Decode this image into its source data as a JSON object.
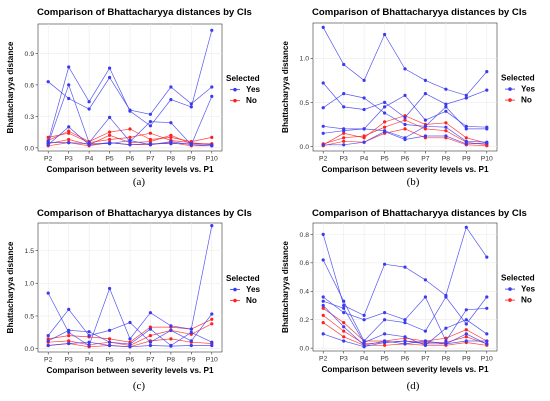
{
  "colors": {
    "yes": "#3a3af0",
    "no": "#ff2020"
  },
  "chart_data": [
    {
      "type": "line",
      "panel": "a",
      "caption": "(a)",
      "title": "Comparison of Bhattacharyya distances by CIs",
      "xlabel": "Comparison between severity levels vs. P1",
      "ylabel": "Bhattacharyya distance",
      "categories": [
        "P2",
        "P3",
        "P4",
        "P5",
        "P6",
        "P7",
        "P8",
        "P9",
        "P10"
      ],
      "ylim": [
        -0.03,
        1.18
      ],
      "yticks": [
        0.0,
        0.3,
        0.6,
        0.9
      ],
      "yticklabels": [
        "0.0",
        "0.3",
        "0.6",
        "0.9"
      ],
      "legend": {
        "title": "Selected",
        "entries": [
          "Yes",
          "No"
        ],
        "position": "right"
      },
      "series": [
        {
          "group": "Yes",
          "values": [
            0.63,
            0.47,
            0.37,
            0.67,
            0.36,
            0.32,
            0.58,
            0.42,
            0.58
          ]
        },
        {
          "group": "Yes",
          "values": [
            0.06,
            0.77,
            0.44,
            0.76,
            0.35,
            0.21,
            0.46,
            0.39,
            1.12
          ]
        },
        {
          "group": "Yes",
          "values": [
            0.04,
            0.6,
            0.05,
            0.29,
            0.06,
            0.25,
            0.24,
            0.03,
            0.49
          ]
        },
        {
          "group": "Yes",
          "values": [
            0.03,
            0.2,
            0.03,
            0.05,
            0.03,
            0.04,
            0.04,
            0.04,
            0.03
          ]
        },
        {
          "group": "Yes",
          "values": [
            0.05,
            0.05,
            0.04,
            0.04,
            0.07,
            0.03,
            0.06,
            0.03,
            0.02
          ]
        },
        {
          "group": "No",
          "values": [
            0.07,
            0.16,
            0.06,
            0.15,
            0.18,
            0.08,
            0.1,
            0.06,
            0.1
          ]
        },
        {
          "group": "No",
          "values": [
            0.1,
            0.14,
            0.05,
            0.08,
            0.1,
            0.14,
            0.07,
            0.05,
            0.03
          ]
        },
        {
          "group": "No",
          "values": [
            0.04,
            0.08,
            0.03,
            0.12,
            0.05,
            0.06,
            0.12,
            0.04,
            0.04
          ]
        },
        {
          "group": "No",
          "values": [
            0.02,
            0.05,
            0.02,
            0.05,
            0.03,
            0.03,
            0.05,
            0.02,
            0.02
          ]
        }
      ]
    },
    {
      "type": "line",
      "panel": "b",
      "caption": "(b)",
      "title": "Comparison of Bhattacharyya distances by CIs",
      "xlabel": "Comparison between severity levels vs. P1",
      "ylabel": "Bhattacharyya distance",
      "categories": [
        "P2",
        "P3",
        "P4",
        "P5",
        "P6",
        "P7",
        "P8",
        "P9",
        "P10"
      ],
      "ylim": [
        -0.05,
        1.4
      ],
      "yticks": [
        0.0,
        0.5,
        1.0
      ],
      "yticklabels": [
        "0.0",
        "0.5",
        "1.0"
      ],
      "legend": {
        "title": "Selected",
        "entries": [
          "Yes",
          "No"
        ],
        "position": "right"
      },
      "series": [
        {
          "group": "Yes",
          "values": [
            1.35,
            0.93,
            0.75,
            1.27,
            0.88,
            0.75,
            0.65,
            0.58,
            0.85
          ]
        },
        {
          "group": "Yes",
          "values": [
            0.72,
            0.45,
            0.42,
            0.5,
            0.33,
            0.6,
            0.48,
            0.55,
            0.64
          ]
        },
        {
          "group": "Yes",
          "values": [
            0.44,
            0.6,
            0.55,
            0.38,
            0.25,
            0.23,
            0.45,
            0.2,
            0.2
          ]
        },
        {
          "group": "Yes",
          "values": [
            0.23,
            0.2,
            0.2,
            0.45,
            0.58,
            0.3,
            0.4,
            0.23,
            0.22
          ]
        },
        {
          "group": "Yes",
          "values": [
            0.15,
            0.18,
            0.2,
            0.18,
            0.1,
            0.23,
            0.22,
            0.06,
            0.05
          ]
        },
        {
          "group": "Yes",
          "values": [
            0.02,
            0.02,
            0.05,
            0.17,
            0.08,
            0.12,
            0.12,
            0.03,
            0.04
          ]
        },
        {
          "group": "No",
          "values": [
            0.02,
            0.15,
            0.1,
            0.28,
            0.35,
            0.25,
            0.27,
            0.1,
            0.04
          ]
        },
        {
          "group": "No",
          "values": [
            0.03,
            0.1,
            0.12,
            0.22,
            0.3,
            0.2,
            0.18,
            0.05,
            0.02
          ]
        },
        {
          "group": "No",
          "values": [
            0.01,
            0.06,
            0.05,
            0.15,
            0.2,
            0.1,
            0.1,
            0.02,
            0.01
          ]
        }
      ]
    },
    {
      "type": "line",
      "panel": "c",
      "caption": "(c)",
      "title": "Comparison of Bhattacharyya distances by CIs",
      "xlabel": "Comparison between severity levels vs. P1",
      "ylabel": "Bhattacharyya distance",
      "categories": [
        "P2",
        "P3",
        "P4",
        "P5",
        "P6",
        "P7",
        "P8",
        "P9",
        "P10"
      ],
      "ylim": [
        -0.05,
        1.92
      ],
      "yticks": [
        0.0,
        0.5,
        1.0,
        1.5
      ],
      "yticklabels": [
        "0.0",
        "0.5",
        "1.0",
        "1.5"
      ],
      "legend": {
        "title": "Selected",
        "entries": [
          "Yes",
          "No"
        ],
        "position": "right"
      },
      "series": [
        {
          "group": "Yes",
          "values": [
            0.85,
            0.25,
            0.05,
            0.92,
            0.15,
            0.55,
            0.35,
            0.3,
            1.88
          ]
        },
        {
          "group": "Yes",
          "values": [
            0.2,
            0.6,
            0.2,
            0.28,
            0.4,
            0.1,
            0.28,
            0.12,
            0.53
          ]
        },
        {
          "group": "Yes",
          "values": [
            0.12,
            0.28,
            0.26,
            0.1,
            0.07,
            0.3,
            0.05,
            0.25,
            0.1
          ]
        },
        {
          "group": "Yes",
          "values": [
            0.05,
            0.08,
            0.1,
            0.05,
            0.03,
            0.05,
            0.04,
            0.05,
            0.05
          ]
        },
        {
          "group": "No",
          "values": [
            0.15,
            0.2,
            0.18,
            0.15,
            0.1,
            0.33,
            0.33,
            0.3,
            0.45
          ]
        },
        {
          "group": "No",
          "values": [
            0.1,
            0.12,
            0.06,
            0.1,
            0.05,
            0.2,
            0.28,
            0.22,
            0.38
          ]
        },
        {
          "group": "No",
          "values": [
            0.05,
            0.08,
            0.03,
            0.05,
            0.03,
            0.12,
            0.15,
            0.1,
            0.08
          ]
        }
      ]
    },
    {
      "type": "line",
      "panel": "d",
      "caption": "(d)",
      "title": "Comparison of Bhattacharyya distances by CIs",
      "xlabel": "Comparison between severity levels vs. P1",
      "ylabel": "Bhattacharyya distance",
      "categories": [
        "P2",
        "P3",
        "P4",
        "P5",
        "P6",
        "P7",
        "P8",
        "P9",
        "P10"
      ],
      "ylim": [
        -0.02,
        0.88
      ],
      "yticks": [
        0.0,
        0.2,
        0.4,
        0.6,
        0.8
      ],
      "yticklabels": [
        "0.0",
        "0.2",
        "0.4",
        "0.6",
        "0.8"
      ],
      "legend": {
        "title": "Selected",
        "entries": [
          "Yes",
          "No"
        ],
        "position": "right"
      },
      "series": [
        {
          "group": "Yes",
          "values": [
            0.8,
            0.3,
            0.23,
            0.59,
            0.57,
            0.48,
            0.37,
            0.85,
            0.64
          ]
        },
        {
          "group": "Yes",
          "values": [
            0.62,
            0.33,
            0.05,
            0.2,
            0.18,
            0.12,
            0.36,
            0.17,
            0.36
          ]
        },
        {
          "group": "Yes",
          "values": [
            0.36,
            0.25,
            0.2,
            0.25,
            0.2,
            0.36,
            0.05,
            0.27,
            0.28
          ]
        },
        {
          "group": "Yes",
          "values": [
            0.33,
            0.28,
            0.04,
            0.1,
            0.08,
            0.02,
            0.14,
            0.2,
            0.1
          ]
        },
        {
          "group": "Yes",
          "values": [
            0.3,
            0.15,
            0.02,
            0.05,
            0.03,
            0.05,
            0.03,
            0.1,
            0.03
          ]
        },
        {
          "group": "Yes",
          "values": [
            0.1,
            0.05,
            0.01,
            0.04,
            0.05,
            0.03,
            0.03,
            0.05,
            0.05
          ]
        },
        {
          "group": "No",
          "values": [
            0.28,
            0.18,
            0.05,
            0.05,
            0.07,
            0.05,
            0.07,
            0.13,
            0.05
          ]
        },
        {
          "group": "No",
          "values": [
            0.23,
            0.12,
            0.03,
            0.04,
            0.05,
            0.04,
            0.04,
            0.08,
            0.03
          ]
        },
        {
          "group": "No",
          "values": [
            0.18,
            0.08,
            0.02,
            0.02,
            0.03,
            0.02,
            0.02,
            0.04,
            0.02
          ]
        }
      ]
    }
  ]
}
